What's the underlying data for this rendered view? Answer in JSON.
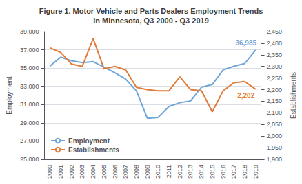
{
  "chart_data": {
    "type": "line",
    "title": "Figure 1. Motor Vehicle and Parts Dealers Employment Trends\nin Minnesota, Q3 2000 - Q3 2019",
    "categories": [
      "2000",
      "2001",
      "2002",
      "2003",
      "2004",
      "2005",
      "2006",
      "2007",
      "2008",
      "2009",
      "2010",
      "2011",
      "2012",
      "2013",
      "2014",
      "2015",
      "2016",
      "2017",
      "2018",
      "2019"
    ],
    "series": [
      {
        "name": "Employment",
        "color": "#70a5d8",
        "values": [
          35200,
          36200,
          35800,
          35600,
          35700,
          35100,
          34500,
          33800,
          32500,
          29500,
          29600,
          30800,
          31200,
          31400,
          32900,
          33200,
          34800,
          35200,
          35500,
          36985
        ]
      },
      {
        "name": "Establishments",
        "color": "#e07b39",
        "axis": "y2",
        "values": [
          2380,
          2360,
          2310,
          2300,
          2420,
          2290,
          2300,
          2285,
          2210,
          2200,
          2195,
          2195,
          2255,
          2200,
          2195,
          2105,
          2195,
          2230,
          2235,
          2202
        ]
      }
    ],
    "ylabel": "Employment",
    "y2label": "Establishments",
    "ylim": [
      25000,
      39000
    ],
    "yticks": [
      {
        "value": 25000,
        "label": "25,000"
      },
      {
        "value": 27000,
        "label": "27,000"
      },
      {
        "value": 29000,
        "label": "29,000"
      },
      {
        "value": 31000,
        "label": "31,000"
      },
      {
        "value": 33000,
        "label": "33,000"
      },
      {
        "value": 35000,
        "label": "35,000"
      },
      {
        "value": 37000,
        "label": "37,000"
      },
      {
        "value": 39000,
        "label": "39,000"
      }
    ],
    "y2lim": [
      1900,
      2450
    ],
    "y2ticks": [
      {
        "value": 1900,
        "label": "1,900"
      },
      {
        "value": 1950,
        "label": "1,950"
      },
      {
        "value": 2000,
        "label": "2,000"
      },
      {
        "value": 2050,
        "label": "2,050"
      },
      {
        "value": 2100,
        "label": "2,100"
      },
      {
        "value": 2150,
        "label": "2,150"
      },
      {
        "value": 2200,
        "label": "2,200"
      },
      {
        "value": 2250,
        "label": "2,250"
      },
      {
        "value": 2300,
        "label": "2,300"
      },
      {
        "value": 2350,
        "label": "2,350"
      },
      {
        "value": 2400,
        "label": "2,400"
      },
      {
        "value": 2450,
        "label": "2,450"
      }
    ],
    "grid": true,
    "legend": "lower left",
    "annotations": [
      {
        "text": "36,985",
        "x": "2019",
        "y": 36985
      },
      {
        "text": "2,202",
        "x": "2019",
        "y": 2202,
        "axis": "y2"
      }
    ]
  }
}
